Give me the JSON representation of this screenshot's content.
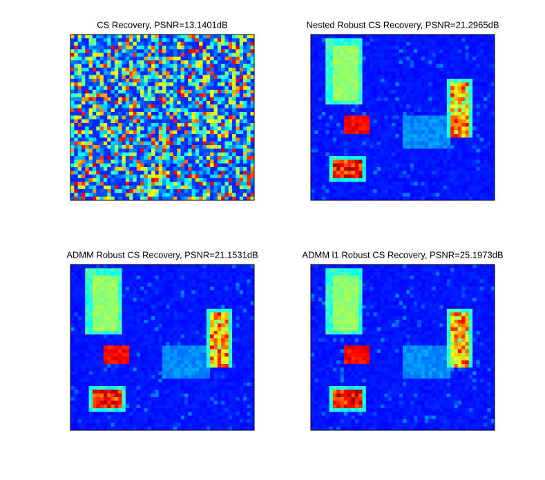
{
  "chart_data": [
    {
      "type": "heatmap",
      "title": "CS Recovery, PSNR=13.1401dB"
    },
    {
      "type": "heatmap",
      "title": "Nested Robust CS Recovery, PSNR=21.2965dB"
    },
    {
      "type": "heatmap",
      "title": "ADMM Robust CS Recovery, PSNR=21.1531dB"
    },
    {
      "type": "heatmap",
      "title": "ADMM l1 Robust CS Recovery, PSNR=25.1973dB"
    }
  ]
}
